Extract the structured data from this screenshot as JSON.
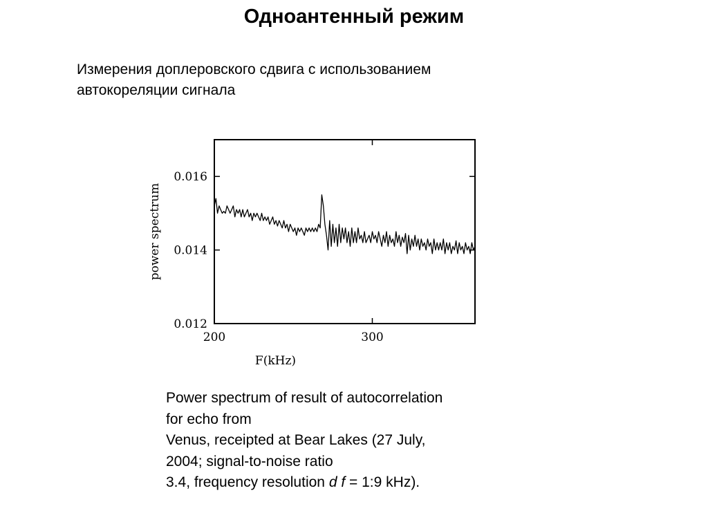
{
  "slide": {
    "title": "Одноантенный режим",
    "subtitle_line1": "Измерения доплеровского сдвига с использованием",
    "subtitle_line2": "автокореляции сигнала"
  },
  "caption": {
    "line1": "Power spectrum of result of autocorrelation",
    "line2": "for echo from",
    "line3": "Venus, receipted at Bear Lakes (27 July,",
    "line4": "2004; signal-to-noise ratio",
    "line5_prefix": "3.4, frequency resolution ",
    "line5_d": "d",
    "line5_f": "f",
    "line5_suffix": " = 1:9 kHz)."
  },
  "chart_data": {
    "type": "line",
    "xlabel": "F(kHz)",
    "ylabel": "power spectrum",
    "xlim": [
      200,
      365
    ],
    "ylim": [
      0.012,
      0.017
    ],
    "xticks": [
      200,
      300
    ],
    "xtick_labels": [
      "200",
      "300"
    ],
    "yticks": [
      0.012,
      0.014,
      0.016
    ],
    "ytick_labels": [
      "0.012",
      "0.014",
      "0.016"
    ],
    "grid": false,
    "line_color": "#000000",
    "series": [
      {
        "x": [
          200,
          201,
          202,
          203,
          204,
          205,
          206,
          207,
          208,
          209,
          210,
          211,
          212,
          213,
          214,
          215,
          216,
          217,
          218,
          219,
          220,
          221,
          222,
          223,
          224,
          225,
          226,
          227,
          228,
          229,
          230,
          231,
          232,
          233,
          234,
          235,
          236,
          237,
          238,
          239,
          240,
          241,
          242,
          243,
          244,
          245,
          246,
          247,
          248,
          249,
          250,
          251,
          252,
          253,
          254,
          255,
          256,
          257,
          258,
          259,
          260,
          261,
          262,
          263,
          264,
          265,
          266,
          267,
          268,
          269,
          270,
          271,
          272,
          273,
          274,
          275,
          276,
          277,
          278,
          279,
          280,
          281,
          282,
          283,
          284,
          285,
          286,
          287,
          288,
          289,
          290,
          291,
          292,
          293,
          294,
          295,
          296,
          297,
          298,
          299,
          300,
          301,
          302,
          303,
          304,
          305,
          306,
          307,
          308,
          309,
          310,
          311,
          312,
          313,
          314,
          315,
          316,
          317,
          318,
          319,
          320,
          321,
          322,
          323,
          324,
          325,
          326,
          327,
          328,
          329,
          330,
          331,
          332,
          333,
          334,
          335,
          336,
          337,
          338,
          339,
          340,
          341,
          342,
          343,
          344,
          345,
          346,
          347,
          348,
          349,
          350,
          351,
          352,
          353,
          354,
          355,
          356,
          357,
          358,
          359,
          360,
          361,
          362,
          363,
          364,
          365
        ],
        "y": [
          0.0152,
          0.0154,
          0.015,
          0.0152,
          0.0151,
          0.015,
          0.01505,
          0.015,
          0.0152,
          0.0151,
          0.015,
          0.0151,
          0.0152,
          0.0149,
          0.0151,
          0.015,
          0.0151,
          0.0149,
          0.0151,
          0.0149,
          0.015,
          0.0151,
          0.0149,
          0.015,
          0.0148,
          0.015,
          0.0149,
          0.015,
          0.0149,
          0.0148,
          0.015,
          0.0148,
          0.0149,
          0.0148,
          0.0149,
          0.0147,
          0.0148,
          0.0149,
          0.0147,
          0.0148,
          0.01465,
          0.0148,
          0.0147,
          0.0146,
          0.0148,
          0.0146,
          0.0147,
          0.0145,
          0.0147,
          0.0146,
          0.0145,
          0.0146,
          0.0144,
          0.0146,
          0.0145,
          0.0146,
          0.0145,
          0.0144,
          0.0146,
          0.0145,
          0.0146,
          0.0145,
          0.0146,
          0.0145,
          0.0146,
          0.0145,
          0.0147,
          0.0146,
          0.0155,
          0.0152,
          0.0147,
          0.0144,
          0.014,
          0.0148,
          0.0141,
          0.0147,
          0.0142,
          0.0146,
          0.0141,
          0.0147,
          0.0142,
          0.0146,
          0.0143,
          0.0146,
          0.0142,
          0.0145,
          0.0141,
          0.0146,
          0.0142,
          0.0145,
          0.0142,
          0.0146,
          0.0143,
          0.0144,
          0.0142,
          0.0145,
          0.0142,
          0.0143,
          0.0144,
          0.0142,
          0.0145,
          0.0143,
          0.0144,
          0.0142,
          0.0145,
          0.0143,
          0.0141,
          0.0144,
          0.0142,
          0.0145,
          0.0141,
          0.0144,
          0.0142,
          0.0143,
          0.0141,
          0.0145,
          0.0142,
          0.0144,
          0.0141,
          0.01435,
          0.0142,
          0.01445,
          0.0139,
          0.0144,
          0.014,
          0.0143,
          0.0141,
          0.0144,
          0.0141,
          0.0143,
          0.014,
          0.0143,
          0.0141,
          0.0142,
          0.014,
          0.0143,
          0.0141,
          0.0142,
          0.0139,
          0.0143,
          0.014,
          0.0142,
          0.014,
          0.0142,
          0.014,
          0.0143,
          0.0139,
          0.0142,
          0.014,
          0.0142,
          0.0139,
          0.0141,
          0.014,
          0.01425,
          0.0139,
          0.0142,
          0.014,
          0.0141,
          0.0139,
          0.0142,
          0.014,
          0.0141,
          0.0139,
          0.0142,
          0.014,
          0.0141
        ]
      }
    ]
  }
}
